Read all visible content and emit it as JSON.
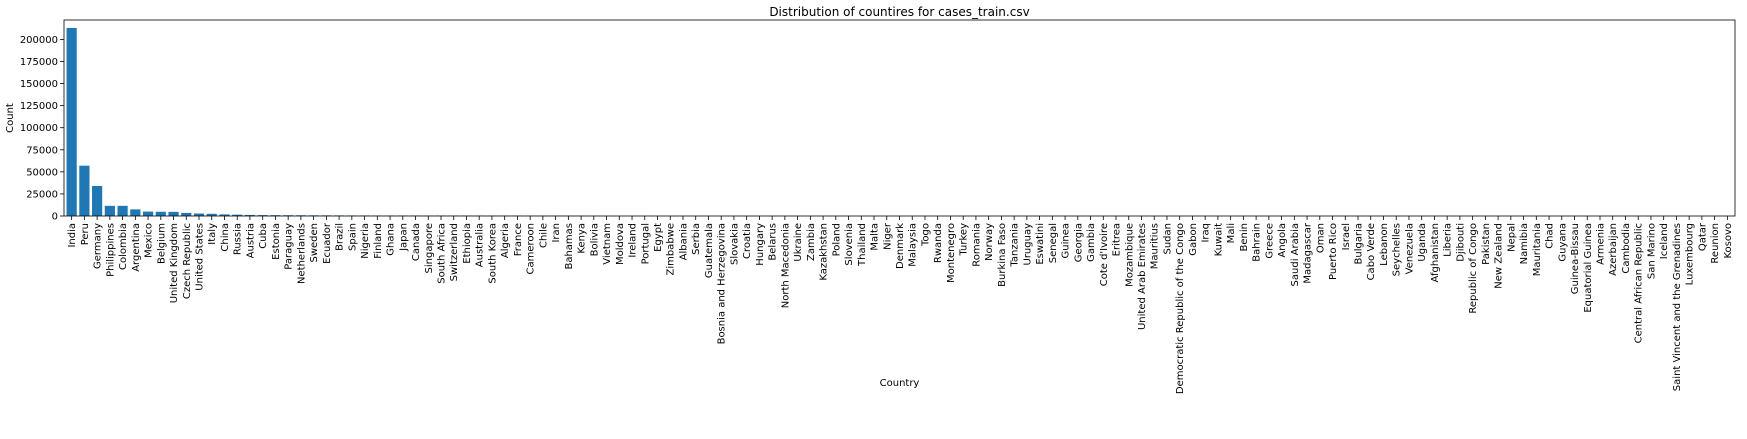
{
  "chart_data": {
    "type": "bar",
    "title": "Distribution of countires for cases_train.csv",
    "xlabel": "Country",
    "ylabel": "Count",
    "ylim": [
      0,
      222000
    ],
    "yticks": [
      0,
      25000,
      50000,
      75000,
      100000,
      125000,
      150000,
      175000,
      200000
    ],
    "grid": false,
    "bar_color": "#1f77b4",
    "categories": [
      "India",
      "Peru",
      "Germany",
      "Philippines",
      "Colombia",
      "Argentina",
      "Mexico",
      "Belgium",
      "United Kingdom",
      "Czech Republic",
      "United States",
      "Italy",
      "China",
      "Russia",
      "Austria",
      "Cuba",
      "Estonia",
      "Paraguay",
      "Netherlands",
      "Sweden",
      "Ecuador",
      "Brazil",
      "Spain",
      "Nigeria",
      "Finland",
      "Ghana",
      "Japan",
      "Canada",
      "Singapore",
      "South Africa",
      "Switzerland",
      "Ethiopia",
      "Australia",
      "South Korea",
      "Algeria",
      "France",
      "Cameroon",
      "Chile",
      "Iran",
      "Bahamas",
      "Kenya",
      "Bolivia",
      "Vietnam",
      "Moldova",
      "Ireland",
      "Portugal",
      "Egypt",
      "Zimbabwe",
      "Albania",
      "Serbia",
      "Guatemala",
      "Bosnia and Herzegovina",
      "Slovakia",
      "Croatia",
      "Hungary",
      "Belarus",
      "North Macedonia",
      "Ukraine",
      "Zambia",
      "Kazakhstan",
      "Poland",
      "Slovenia",
      "Thailand",
      "Malta",
      "Niger",
      "Denmark",
      "Malaysia",
      "Togo",
      "Rwanda",
      "Montenegro",
      "Turkey",
      "Romania",
      "Norway",
      "Burkina Faso",
      "Tanzania",
      "Uruguay",
      "Eswatini",
      "Senegal",
      "Guinea",
      "Georgia",
      "Gambia",
      "Cote d'Ivoire",
      "Eritrea",
      "Mozambique",
      "United Arab Emirates",
      "Mauritius",
      "Sudan",
      "Democratic Republic of the Congo",
      "Gabon",
      "Iraq",
      "Kuwait",
      "Mali",
      "Benin",
      "Bahrain",
      "Greece",
      "Angola",
      "Saudi Arabia",
      "Madagascar",
      "Oman",
      "Puerto Rico",
      "Israel",
      "Bulgaria",
      "Cabo Verde",
      "Lebanon",
      "Seychelles",
      "Venezuela",
      "Uganda",
      "Afghanistan",
      "Liberia",
      "Djibouti",
      "Republic of Congo",
      "Pakistan",
      "New Zealand",
      "Nepal",
      "Namibia",
      "Mauritania",
      "Chad",
      "Guyana",
      "Guinea-Bissau",
      "Equatorial Guinea",
      "Armenia",
      "Azerbaijan",
      "Cambodia",
      "Central African Republic",
      "San Marino",
      "Iceland",
      "Saint Vincent and the Grenadines",
      "Luxembourg",
      "Qatar",
      "Reunion",
      "Kosovo"
    ],
    "values": [
      213000,
      57000,
      34000,
      11500,
      11500,
      7500,
      5000,
      4800,
      4700,
      3500,
      2800,
      2500,
      1800,
      1500,
      1200,
      1000,
      900,
      850,
      800,
      750,
      700,
      650,
      600,
      580,
      550,
      520,
      500,
      480,
      460,
      440,
      420,
      400,
      380,
      360,
      340,
      320,
      300,
      280,
      260,
      200,
      150,
      120,
      100,
      90,
      80,
      70,
      60,
      50,
      45,
      40,
      35,
      30,
      28,
      26,
      24,
      22,
      20,
      18,
      16,
      15,
      14,
      13,
      12,
      11,
      10,
      9,
      9,
      8,
      8,
      7,
      7,
      6,
      6,
      5,
      5,
      5,
      4,
      4,
      4,
      3,
      3,
      3,
      3,
      3,
      2,
      2,
      2,
      2,
      2,
      2,
      2,
      2,
      2,
      2,
      2,
      2,
      2,
      1,
      1,
      1,
      1,
      1,
      1,
      1,
      1,
      1,
      1,
      1,
      1,
      1,
      1,
      1,
      1,
      1,
      1,
      1,
      1,
      1,
      1,
      1,
      1,
      1,
      1,
      1,
      1,
      1,
      1,
      1,
      1,
      1,
      1
    ]
  }
}
